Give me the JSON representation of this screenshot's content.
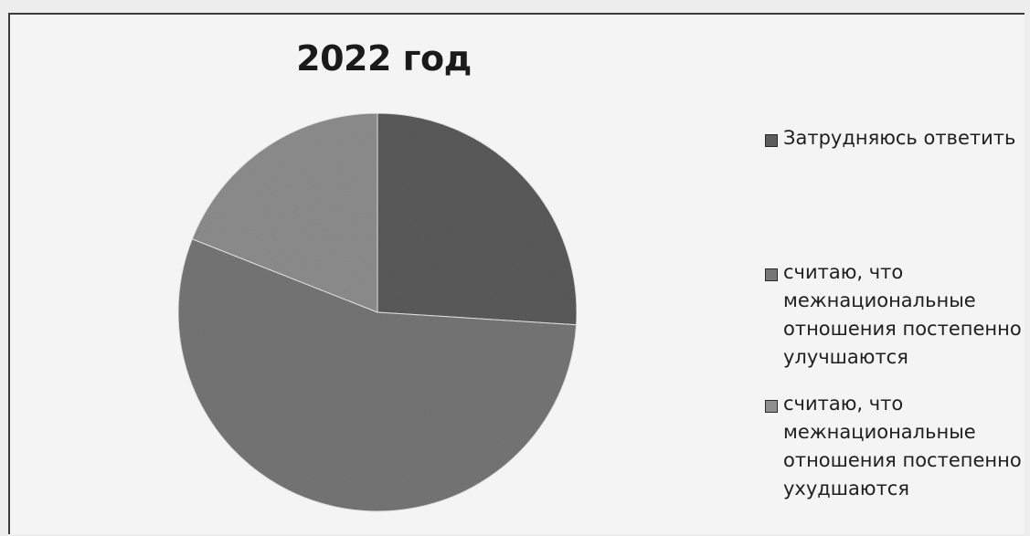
{
  "chart_data": {
    "type": "pie",
    "title": "2022 год",
    "legend_position": "right",
    "slices": [
      {
        "label": "Затрудняюсь ответить",
        "value": 26,
        "color": "#5c5c5c"
      },
      {
        "label": "считаю, что межнациональные отношения постепенно улучшаются",
        "value": 55,
        "color": "#777777"
      },
      {
        "label": "считаю, что межнациональные отношения постепенно ухудшаются",
        "value": 19,
        "color": "#8f8f8f"
      }
    ]
  }
}
